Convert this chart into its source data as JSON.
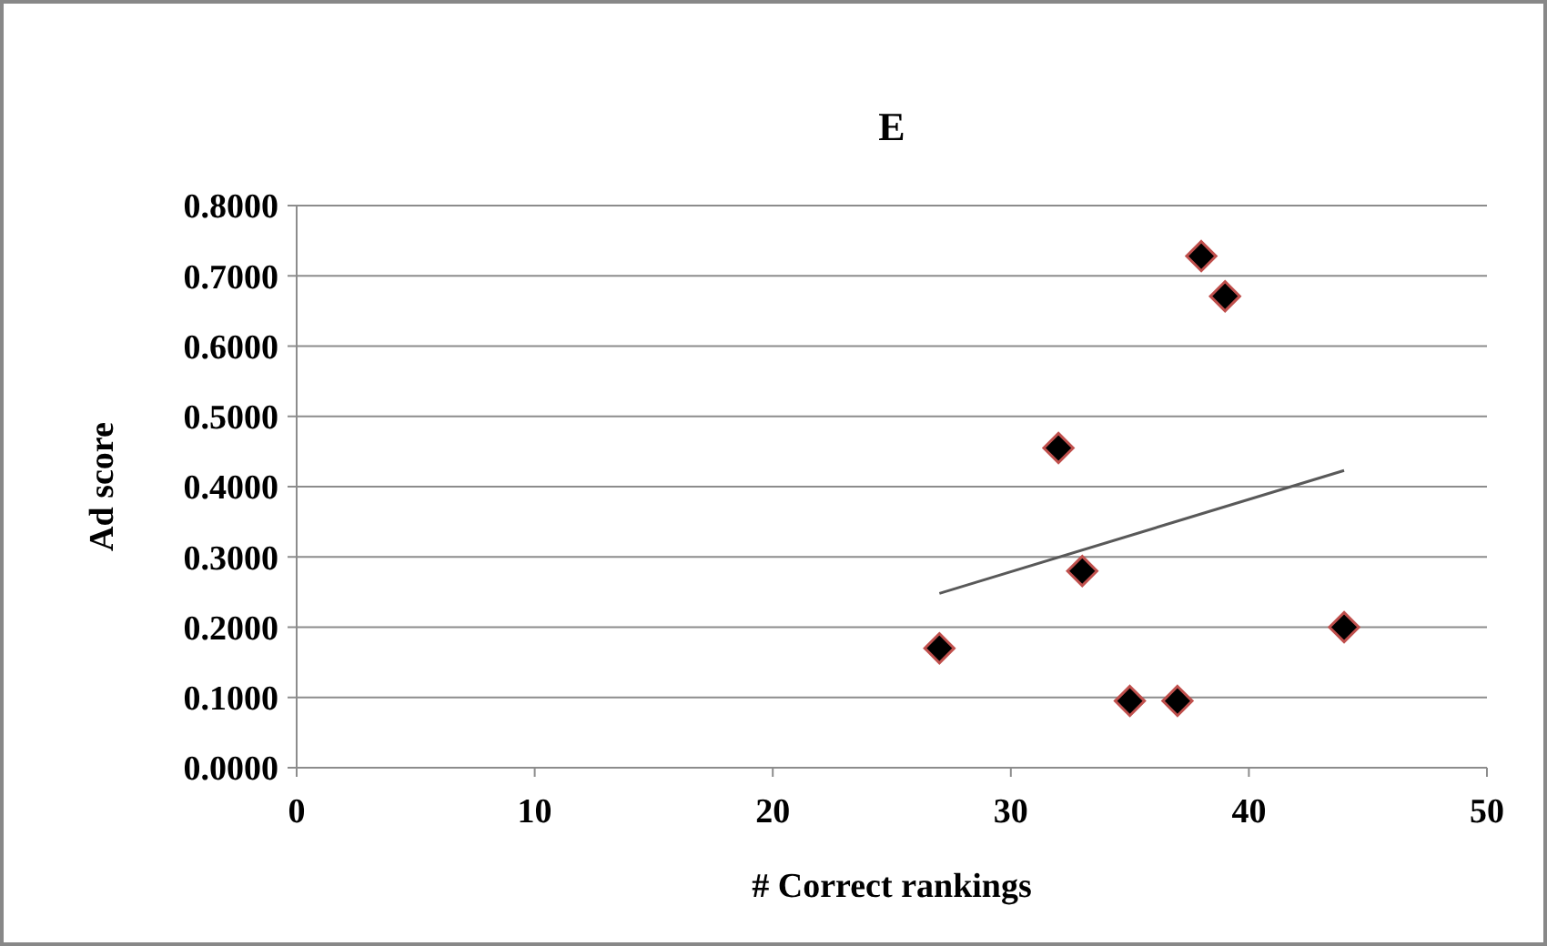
{
  "chart_data": {
    "type": "scatter",
    "title": "E",
    "xlabel": "# Correct rankings",
    "ylabel": "Ad score",
    "xlim": [
      0,
      50
    ],
    "xticks": [
      0,
      10,
      20,
      30,
      40,
      50
    ],
    "ylim": [
      0,
      0.8
    ],
    "yticks": [
      {
        "value": 0,
        "label": "0.0000"
      },
      {
        "value": 0.1,
        "label": "0.1000"
      },
      {
        "value": 0.2,
        "label": "0.2000"
      },
      {
        "value": 0.3,
        "label": "0.3000"
      },
      {
        "value": 0.4,
        "label": "0.4000"
      },
      {
        "value": 0.5,
        "label": "0.5000"
      },
      {
        "value": 0.6,
        "label": "0.6000"
      },
      {
        "value": 0.7,
        "label": "0.7000"
      },
      {
        "value": 0.8,
        "label": "0.8000"
      }
    ],
    "grid": "y",
    "series": [
      {
        "marker": "diamond",
        "color": "#000000",
        "x": [
          27,
          32,
          33,
          35,
          37,
          38,
          39,
          44
        ],
        "values": [
          0.17,
          0.455,
          0.28,
          0.095,
          0.095,
          0.728,
          0.671,
          0.2
        ]
      },
      {
        "type": "line",
        "marker": "none",
        "color": "#595959",
        "x": [
          27,
          44
        ],
        "values": [
          0.248,
          0.423
        ]
      }
    ]
  }
}
